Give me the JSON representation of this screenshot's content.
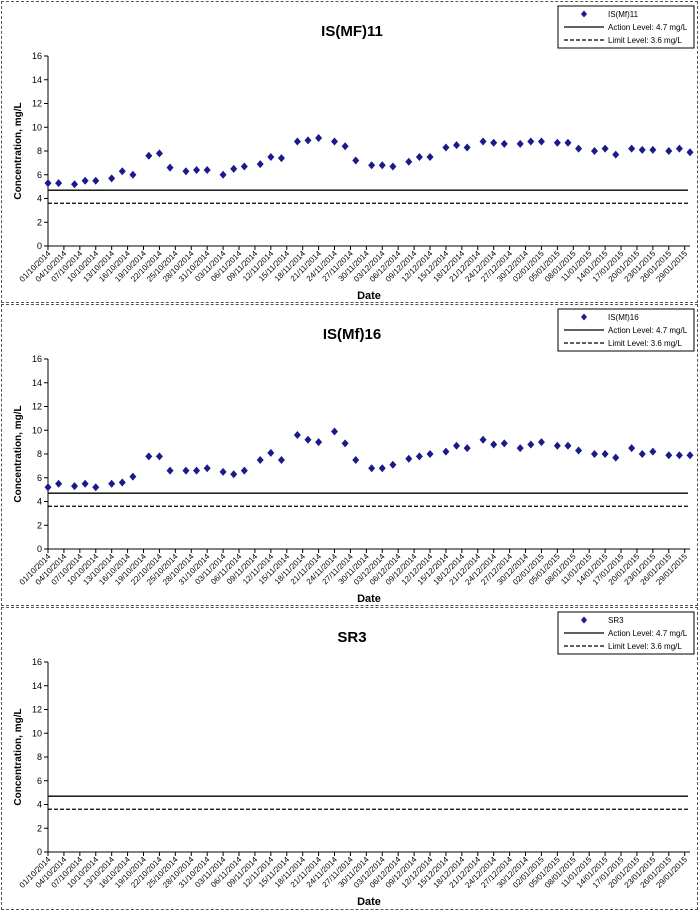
{
  "chart_data": [
    {
      "type": "scatter",
      "title": "IS(MF)11",
      "xlabel": "Date",
      "ylabel": "Concentration, mg/L",
      "ylim": [
        0,
        16
      ],
      "yticks": [
        0,
        2,
        4,
        6,
        8,
        10,
        12,
        14,
        16
      ],
      "xticks": [
        "01/10/2014",
        "04/10/2014",
        "07/10/2014",
        "10/10/2014",
        "13/10/2014",
        "16/10/2014",
        "19/10/2014",
        "22/10/2014",
        "25/10/2014",
        "28/10/2014",
        "31/10/2014",
        "03/11/2014",
        "06/11/2014",
        "09/11/2014",
        "12/11/2014",
        "15/11/2014",
        "18/11/2014",
        "21/11/2014",
        "24/11/2014",
        "27/11/2014",
        "30/11/2014",
        "03/12/2014",
        "06/12/2014",
        "09/12/2014",
        "12/12/2014",
        "15/12/2014",
        "18/12/2014",
        "21/12/2014",
        "24/12/2014",
        "27/12/2014",
        "30/12/2014",
        "02/01/2015",
        "05/01/2015",
        "08/01/2015",
        "11/01/2015",
        "14/01/2015",
        "17/01/2015",
        "20/01/2015",
        "23/01/2015",
        "26/01/2015",
        "29/01/2015"
      ],
      "grid": false,
      "legend_position": "top-right",
      "series": [
        {
          "name": "IS(Mf)11",
          "color": "#1a1a8c",
          "marker": "diamond",
          "x": [
            "01/10/2014",
            "03/10/2014",
            "06/10/2014",
            "08/10/2014",
            "10/10/2014",
            "13/10/2014",
            "15/10/2014",
            "17/10/2014",
            "20/10/2014",
            "22/10/2014",
            "24/10/2014",
            "27/10/2014",
            "29/10/2014",
            "31/10/2014",
            "03/11/2014",
            "05/11/2014",
            "07/11/2014",
            "10/11/2014",
            "12/11/2014",
            "14/11/2014",
            "17/11/2014",
            "19/11/2014",
            "21/11/2014",
            "24/11/2014",
            "26/11/2014",
            "28/11/2014",
            "01/12/2014",
            "03/12/2014",
            "05/12/2014",
            "08/12/2014",
            "10/12/2014",
            "12/12/2014",
            "15/12/2014",
            "17/12/2014",
            "19/12/2014",
            "22/12/2014",
            "24/12/2014",
            "26/12/2014",
            "29/12/2014",
            "31/12/2014",
            "02/01/2015",
            "05/01/2015",
            "07/01/2015",
            "09/01/2015",
            "12/01/2015",
            "14/01/2015",
            "16/01/2015",
            "19/01/2015",
            "21/01/2015",
            "23/01/2015",
            "26/01/2015",
            "28/01/2015",
            "30/01/2015"
          ],
          "y": [
            5.3,
            5.3,
            5.2,
            5.5,
            5.5,
            5.7,
            6.3,
            6.0,
            7.6,
            7.8,
            6.6,
            6.3,
            6.4,
            6.4,
            6.0,
            6.5,
            6.7,
            6.9,
            7.5,
            7.4,
            8.8,
            8.9,
            9.1,
            8.8,
            8.4,
            7.2,
            6.8,
            6.8,
            6.7,
            7.1,
            7.5,
            7.5,
            8.3,
            8.5,
            8.3,
            8.8,
            8.7,
            8.6,
            8.6,
            8.8,
            8.8,
            8.7,
            8.7,
            8.2,
            8.0,
            8.2,
            7.7,
            8.2,
            8.1,
            8.1,
            8.0,
            8.2,
            7.9
          ]
        },
        {
          "name": "Action Level: 4.7 mg/L",
          "color": "#000000",
          "style": "solid",
          "y": 4.7
        },
        {
          "name": "Limit Level: 3.6 mg/L",
          "color": "#000000",
          "style": "dashed",
          "y": 3.6
        }
      ]
    },
    {
      "type": "scatter",
      "title": "IS(Mf)16",
      "xlabel": "Date",
      "ylabel": "Concentration, mg/L",
      "ylim": [
        0,
        16
      ],
      "yticks": [
        0,
        2,
        4,
        6,
        8,
        10,
        12,
        14,
        16
      ],
      "xticks": [
        "01/10/2014",
        "04/10/2014",
        "07/10/2014",
        "10/10/2014",
        "13/10/2014",
        "16/10/2014",
        "19/10/2014",
        "22/10/2014",
        "25/10/2014",
        "28/10/2014",
        "31/10/2014",
        "03/11/2014",
        "06/11/2014",
        "09/11/2014",
        "12/11/2014",
        "15/11/2014",
        "18/11/2014",
        "21/11/2014",
        "24/11/2014",
        "27/11/2014",
        "30/11/2014",
        "03/12/2014",
        "06/12/2014",
        "09/12/2014",
        "12/12/2014",
        "15/12/2014",
        "18/12/2014",
        "21/12/2014",
        "24/12/2014",
        "27/12/2014",
        "30/12/2014",
        "02/01/2015",
        "05/01/2015",
        "08/01/2015",
        "11/01/2015",
        "14/01/2015",
        "17/01/2015",
        "20/01/2015",
        "23/01/2015",
        "26/01/2015",
        "29/01/2015"
      ],
      "grid": false,
      "legend_position": "top-right",
      "series": [
        {
          "name": "IS(Mf)16",
          "color": "#1a1a8c",
          "marker": "diamond",
          "x": [
            "01/10/2014",
            "03/10/2014",
            "06/10/2014",
            "08/10/2014",
            "10/10/2014",
            "13/10/2014",
            "15/10/2014",
            "17/10/2014",
            "20/10/2014",
            "22/10/2014",
            "24/10/2014",
            "27/10/2014",
            "29/10/2014",
            "31/10/2014",
            "03/11/2014",
            "05/11/2014",
            "07/11/2014",
            "10/11/2014",
            "12/11/2014",
            "14/11/2014",
            "17/11/2014",
            "19/11/2014",
            "21/11/2014",
            "24/11/2014",
            "26/11/2014",
            "28/11/2014",
            "01/12/2014",
            "03/12/2014",
            "05/12/2014",
            "08/12/2014",
            "10/12/2014",
            "12/12/2014",
            "15/12/2014",
            "17/12/2014",
            "19/12/2014",
            "22/12/2014",
            "24/12/2014",
            "26/12/2014",
            "29/12/2014",
            "31/12/2014",
            "02/01/2015",
            "05/01/2015",
            "07/01/2015",
            "09/01/2015",
            "12/01/2015",
            "14/01/2015",
            "16/01/2015",
            "19/01/2015",
            "21/01/2015",
            "23/01/2015",
            "26/01/2015",
            "28/01/2015",
            "30/01/2015"
          ],
          "y": [
            5.2,
            5.5,
            5.3,
            5.5,
            5.2,
            5.5,
            5.6,
            6.1,
            7.8,
            7.8,
            6.6,
            6.6,
            6.6,
            6.8,
            6.5,
            6.3,
            6.6,
            7.5,
            8.1,
            7.5,
            9.6,
            9.2,
            9.0,
            9.9,
            8.9,
            7.5,
            6.8,
            6.8,
            7.1,
            7.6,
            7.8,
            8.0,
            8.2,
            8.7,
            8.5,
            9.2,
            8.8,
            8.9,
            8.5,
            8.8,
            9.0,
            8.7,
            8.7,
            8.3,
            8.0,
            8.0,
            7.7,
            8.5,
            8.0,
            8.2,
            7.9,
            7.9,
            7.9
          ]
        },
        {
          "name": "Action Level: 4.7 mg/L",
          "color": "#000000",
          "style": "solid",
          "y": 4.7
        },
        {
          "name": "Limit Level: 3.6 mg/L",
          "color": "#000000",
          "style": "dashed",
          "y": 3.6
        }
      ]
    },
    {
      "type": "scatter",
      "title": "SR3",
      "xlabel": "Date",
      "ylabel": "Concentration, mg/L",
      "ylim": [
        0,
        16
      ],
      "yticks": [
        0,
        2,
        4,
        6,
        8,
        10,
        12,
        14,
        16
      ],
      "xticks": [
        "01/10/2014",
        "04/10/2014",
        "07/10/2014",
        "10/10/2014",
        "13/10/2014",
        "16/10/2014",
        "19/10/2014",
        "22/10/2014",
        "25/10/2014",
        "28/10/2014",
        "31/10/2014",
        "03/11/2014",
        "06/11/2014",
        "09/11/2014",
        "12/11/2014",
        "15/11/2014",
        "18/11/2014",
        "21/11/2014",
        "24/11/2014",
        "27/11/2014",
        "30/11/2014",
        "03/12/2014",
        "06/12/2014",
        "09/12/2014",
        "12/12/2014",
        "15/12/2014",
        "18/12/2014",
        "21/12/2014",
        "24/12/2014",
        "27/12/2014",
        "30/12/2014",
        "02/01/2015",
        "05/01/2015",
        "08/01/2015",
        "11/01/2015",
        "14/01/2015",
        "17/01/2015",
        "20/01/2015",
        "23/01/2015",
        "26/01/2015",
        "29/01/2015"
      ],
      "grid": false,
      "legend_position": "top-right",
      "series": [
        {
          "name": "SR3",
          "color": "#1a1a8c",
          "marker": "diamond",
          "x": [],
          "y": []
        },
        {
          "name": "Action Level: 4.7 mg/L",
          "color": "#000000",
          "style": "solid",
          "y": 4.7
        },
        {
          "name": "Limit Level: 3.6 mg/L",
          "color": "#000000",
          "style": "dashed",
          "y": 3.6
        }
      ]
    }
  ]
}
